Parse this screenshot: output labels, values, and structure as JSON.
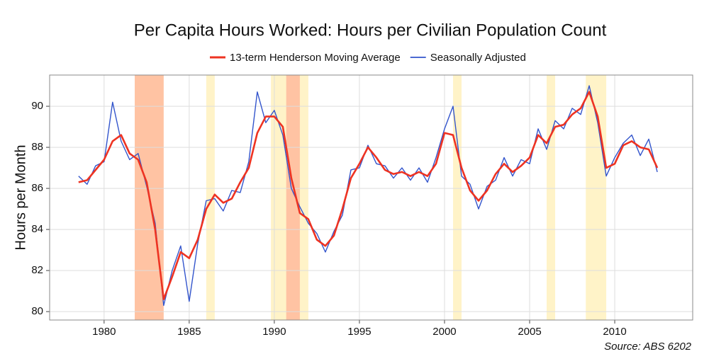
{
  "chart_data": {
    "type": "line",
    "title": "Per Capita Hours Worked: Hours per Civilian Population Count",
    "ylabel": "Hours per Month",
    "source": "Source: ABS 6202",
    "x": [
      1978.5,
      1979.0,
      1979.5,
      1980.0,
      1980.5,
      1981.0,
      1981.5,
      1982.0,
      1982.5,
      1983.0,
      1983.5,
      1984.0,
      1984.5,
      1985.0,
      1985.5,
      1986.0,
      1986.5,
      1987.0,
      1987.5,
      1988.0,
      1988.5,
      1989.0,
      1989.5,
      1990.0,
      1990.5,
      1991.0,
      1991.5,
      1992.0,
      1992.5,
      1993.0,
      1993.5,
      1994.0,
      1994.5,
      1995.0,
      1995.5,
      1996.0,
      1996.5,
      1997.0,
      1997.5,
      1998.0,
      1998.5,
      1999.0,
      1999.5,
      2000.0,
      2000.5,
      2001.0,
      2001.5,
      2002.0,
      2002.5,
      2003.0,
      2003.5,
      2004.0,
      2004.5,
      2005.0,
      2005.5,
      2006.0,
      2006.5,
      2007.0,
      2007.5,
      2008.0,
      2008.5,
      2009.0,
      2009.5,
      2010.0,
      2010.5,
      2011.0,
      2011.5,
      2012.0,
      2012.5
    ],
    "series": [
      {
        "name": "13-term Henderson Moving Average",
        "color": "#ee3322",
        "width": 2.6,
        "values": [
          86.3,
          86.4,
          86.9,
          87.4,
          88.3,
          88.6,
          87.7,
          87.4,
          86.3,
          84.0,
          80.6,
          81.7,
          82.9,
          82.6,
          83.5,
          85.0,
          85.7,
          85.3,
          85.5,
          86.3,
          87.0,
          88.7,
          89.5,
          89.5,
          89.0,
          86.5,
          84.8,
          84.5,
          83.5,
          83.2,
          83.7,
          85.0,
          86.5,
          87.2,
          88.0,
          87.5,
          86.9,
          86.7,
          86.8,
          86.6,
          86.8,
          86.6,
          87.2,
          88.7,
          88.6,
          87.0,
          85.9,
          85.4,
          85.9,
          86.7,
          87.2,
          86.8,
          87.1,
          87.5,
          88.6,
          88.2,
          89.0,
          89.1,
          89.6,
          89.9,
          90.7,
          89.5,
          87.0,
          87.2,
          88.1,
          88.3,
          88.0,
          87.9,
          87.0
        ]
      },
      {
        "name": "Seasonally Adjusted",
        "color": "#3355cc",
        "width": 1.4,
        "values": [
          86.6,
          86.2,
          87.1,
          87.3,
          90.2,
          88.3,
          87.4,
          87.7,
          86.1,
          84.3,
          80.3,
          82.0,
          83.2,
          80.5,
          83.3,
          85.4,
          85.5,
          84.9,
          85.9,
          85.8,
          87.3,
          90.7,
          89.2,
          89.8,
          88.6,
          86.0,
          85.1,
          84.3,
          83.8,
          82.9,
          83.9,
          84.7,
          86.9,
          87.0,
          88.1,
          87.2,
          87.1,
          86.5,
          87.0,
          86.4,
          87.0,
          86.3,
          87.5,
          88.9,
          90.0,
          86.6,
          86.2,
          85.0,
          86.1,
          86.4,
          87.5,
          86.6,
          87.4,
          87.2,
          88.9,
          87.9,
          89.3,
          88.9,
          89.9,
          89.6,
          91.0,
          89.2,
          86.6,
          87.5,
          88.2,
          88.6,
          87.6,
          88.4,
          86.8
        ]
      }
    ],
    "bands": [
      {
        "start": 1981.8,
        "end": 1983.5,
        "color": "#ffc3a3"
      },
      {
        "start": 1986.0,
        "end": 1986.5,
        "color": "#fff3c8"
      },
      {
        "start": 1989.8,
        "end": 1992.0,
        "color": "#fff3c8"
      },
      {
        "start": 1990.7,
        "end": 1991.5,
        "color": "#ffc3a3"
      },
      {
        "start": 2000.5,
        "end": 2001.0,
        "color": "#fff3c8"
      },
      {
        "start": 2006.0,
        "end": 2006.5,
        "color": "#fff3c8"
      },
      {
        "start": 2008.3,
        "end": 2009.5,
        "color": "#fff3c8"
      }
    ],
    "xlim": [
      1976.8,
      2014.58
    ],
    "xticks": [
      1980,
      1985,
      1990,
      1995,
      2000,
      2005,
      2010
    ],
    "ylim": [
      79.59,
      91.52
    ],
    "yticks": [
      80,
      82,
      84,
      86,
      88,
      90
    ],
    "grid": true
  }
}
